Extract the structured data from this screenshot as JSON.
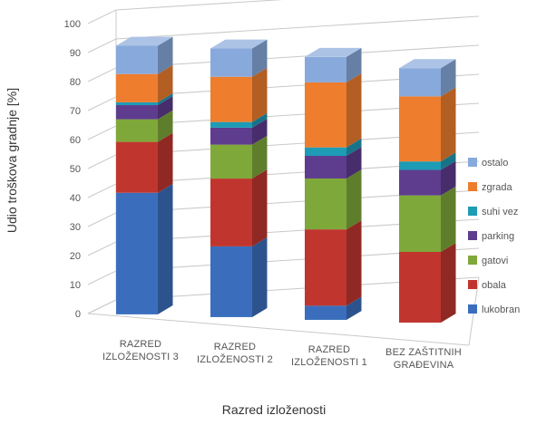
{
  "chart_data": {
    "type": "bar",
    "stacked": true,
    "style": "3d",
    "categories": [
      [
        "RAZRED",
        "IZLOŽENOSTI 3"
      ],
      [
        "RAZRED",
        "IZLOŽENOSTI 2"
      ],
      [
        "RAZRED",
        "IZLOŽENOSTI 1"
      ],
      [
        "BEZ ZAŠTITNIH",
        "GRAĐEVINA"
      ]
    ],
    "series": [
      {
        "name": "lukobran",
        "color": "#3A6EBD",
        "values": [
          43,
          25,
          5,
          0
        ]
      },
      {
        "name": "obala",
        "color": "#C0362F",
        "values": [
          18,
          24,
          27,
          25
        ]
      },
      {
        "name": "gatovi",
        "color": "#7FA83A",
        "values": [
          8,
          12,
          18,
          20
        ]
      },
      {
        "name": "parking",
        "color": "#5E3C8E",
        "values": [
          5,
          6,
          8,
          9
        ]
      },
      {
        "name": "suhi vez",
        "color": "#1E9BB5",
        "values": [
          1,
          2,
          3,
          3
        ]
      },
      {
        "name": "zgrada",
        "color": "#EE7D2E",
        "values": [
          10,
          16,
          23,
          23
        ]
      },
      {
        "name": "ostalo",
        "color": "#88A9DB",
        "values": [
          10,
          10,
          9,
          10
        ]
      }
    ],
    "legend_order": [
      "ostalo",
      "zgrada",
      "suhi vez",
      "parking",
      "gatovi",
      "obala",
      "lukobran"
    ],
    "legend_position": "right",
    "ylim": [
      0,
      100
    ],
    "yticks": [
      0,
      10,
      20,
      30,
      40,
      50,
      60,
      70,
      80,
      90,
      100
    ],
    "xlabel": "Razred izloženosti",
    "ylabel": "Udio troškova gradnje [%]",
    "grid": true
  }
}
